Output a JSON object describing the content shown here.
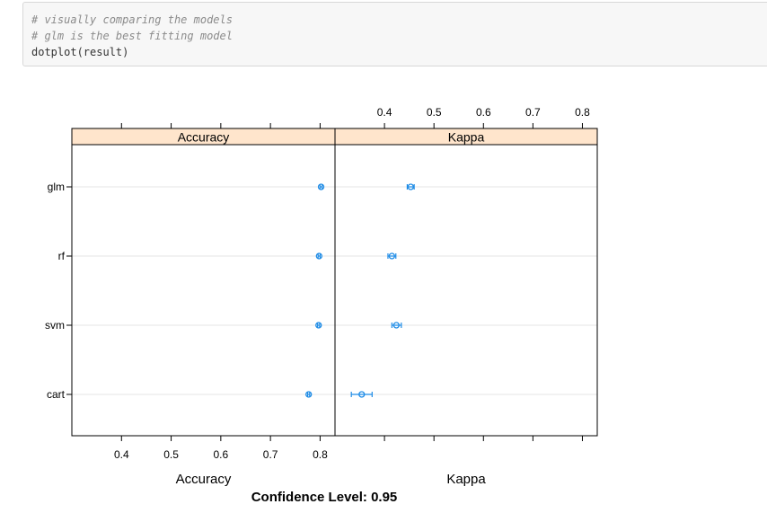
{
  "code_cell": {
    "lines": [
      {
        "kind": "comment",
        "text": "# visually comparing the models"
      },
      {
        "kind": "comment",
        "text": "# glm is the best fitting model"
      },
      {
        "kind": "code",
        "text": "dotplot(result)"
      }
    ]
  },
  "chart_data": {
    "type": "scatter",
    "layout": "dotplot with confidence intervals, two panels",
    "models": [
      "glm",
      "rf",
      "svm",
      "cart"
    ],
    "point_color": "#1f8ce6",
    "strip_color": "#ffe5cc",
    "panels": [
      {
        "name": "Accuracy",
        "xlabel": "Accuracy",
        "xlim": [
          0.3,
          0.83
        ],
        "ticks": [
          0.4,
          0.5,
          0.6,
          0.7,
          0.8
        ],
        "tick_labels": [
          "0.4",
          "0.5",
          "0.6",
          "0.7",
          "0.8"
        ],
        "tick_labels_position": "bottom",
        "points": [
          {
            "model": "glm",
            "estimate": 0.802,
            "lower": 0.8,
            "upper": 0.804
          },
          {
            "model": "rf",
            "estimate": 0.798,
            "lower": 0.796,
            "upper": 0.8
          },
          {
            "model": "svm",
            "estimate": 0.797,
            "lower": 0.795,
            "upper": 0.799
          },
          {
            "model": "cart",
            "estimate": 0.777,
            "lower": 0.775,
            "upper": 0.779
          }
        ]
      },
      {
        "name": "Kappa",
        "xlabel": "Kappa",
        "xlim": [
          0.3,
          0.83
        ],
        "ticks": [
          0.4,
          0.5,
          0.6,
          0.7,
          0.8
        ],
        "tick_labels": [
          "0.4",
          "0.5",
          "0.6",
          "0.7",
          "0.8"
        ],
        "tick_labels_position": "top",
        "points": [
          {
            "model": "glm",
            "estimate": 0.453,
            "lower": 0.446,
            "upper": 0.46
          },
          {
            "model": "rf",
            "estimate": 0.415,
            "lower": 0.407,
            "upper": 0.423
          },
          {
            "model": "svm",
            "estimate": 0.424,
            "lower": 0.415,
            "upper": 0.434
          },
          {
            "model": "cart",
            "estimate": 0.354,
            "lower": 0.333,
            "upper": 0.375
          }
        ]
      }
    ],
    "footer": "Confidence Level: 0.95",
    "grid": true
  }
}
